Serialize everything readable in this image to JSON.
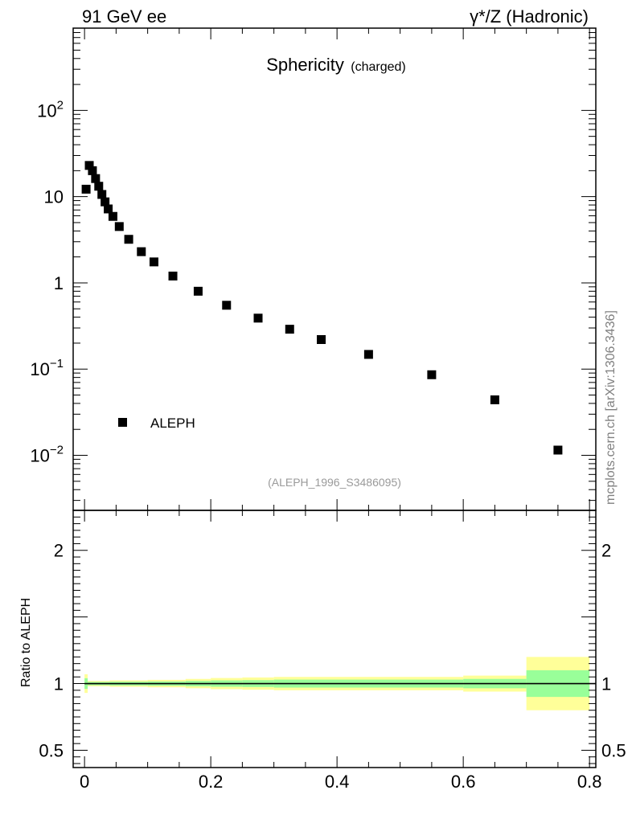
{
  "header": {
    "left": "91 GeV ee",
    "right": "γ*/Z (Hadronic)"
  },
  "watermark": "mcplots.cern.ch [arXiv:1306.3436]",
  "chart_data": [
    {
      "type": "scatter",
      "title": "Sphericity",
      "subtitle": "(charged)",
      "reference": "(ALEPH_1996_S3486095)",
      "yscale": "log",
      "xlim": [
        -0.018,
        0.81
      ],
      "ylim": [
        0.0023,
        900
      ],
      "yticks": [
        {
          "value": 100,
          "base": "10",
          "exp": "2"
        },
        {
          "value": 10,
          "base": "10",
          "exp": ""
        },
        {
          "value": 1,
          "base": "1",
          "exp": ""
        },
        {
          "value": 0.1,
          "base": "10",
          "exp": "−1"
        },
        {
          "value": 0.01,
          "base": "10",
          "exp": "−2"
        }
      ],
      "legend": {
        "placement": "bottom-left",
        "label": "ALEPH"
      },
      "series": [
        {
          "name": "ALEPH",
          "color": "#000000",
          "x": [
            0.0025,
            0.0075,
            0.0125,
            0.0175,
            0.0225,
            0.0275,
            0.0325,
            0.0375,
            0.045,
            0.055,
            0.07,
            0.09,
            0.11,
            0.14,
            0.18,
            0.225,
            0.275,
            0.325,
            0.375,
            0.45,
            0.55,
            0.65,
            0.75
          ],
          "y": [
            12.2,
            23.0,
            20.0,
            16.2,
            13.2,
            10.6,
            8.7,
            7.2,
            5.9,
            4.5,
            3.2,
            2.3,
            1.75,
            1.2,
            0.8,
            0.55,
            0.39,
            0.29,
            0.22,
            0.148,
            0.086,
            0.044,
            0.0115
          ]
        }
      ]
    },
    {
      "type": "area",
      "ylabel": "Ratio to ALEPH",
      "xlim": [
        -0.018,
        0.81
      ],
      "ylim": [
        0.37,
        2.3
      ],
      "xticks": [
        "0",
        "0.2",
        "0.4",
        "0.6",
        "0.8"
      ],
      "xtick_values": [
        0,
        0.2,
        0.4,
        0.6,
        0.8
      ],
      "yticks": [
        "0.5",
        "1",
        "2"
      ],
      "ytick_values": [
        0.5,
        1,
        2
      ],
      "reference_line": 1,
      "bands": {
        "colors": {
          "outer": "#ffff99",
          "inner": "#99ff99"
        },
        "bins": [
          {
            "lo": 0.0,
            "hi": 0.005,
            "inner": 0.04,
            "outer": 0.07
          },
          {
            "lo": 0.005,
            "hi": 0.04,
            "inner": 0.012,
            "outer": 0.02
          },
          {
            "lo": 0.04,
            "hi": 0.1,
            "inner": 0.014,
            "outer": 0.024
          },
          {
            "lo": 0.1,
            "hi": 0.16,
            "inner": 0.016,
            "outer": 0.028
          },
          {
            "lo": 0.16,
            "hi": 0.2,
            "inner": 0.02,
            "outer": 0.035
          },
          {
            "lo": 0.2,
            "hi": 0.25,
            "inner": 0.024,
            "outer": 0.042
          },
          {
            "lo": 0.25,
            "hi": 0.3,
            "inner": 0.026,
            "outer": 0.046
          },
          {
            "lo": 0.3,
            "hi": 0.6,
            "inner": 0.03,
            "outer": 0.05
          },
          {
            "lo": 0.6,
            "hi": 0.7,
            "inner": 0.035,
            "outer": 0.06
          },
          {
            "lo": 0.7,
            "hi": 0.8,
            "inner": 0.1,
            "outer": 0.2
          }
        ]
      }
    }
  ]
}
